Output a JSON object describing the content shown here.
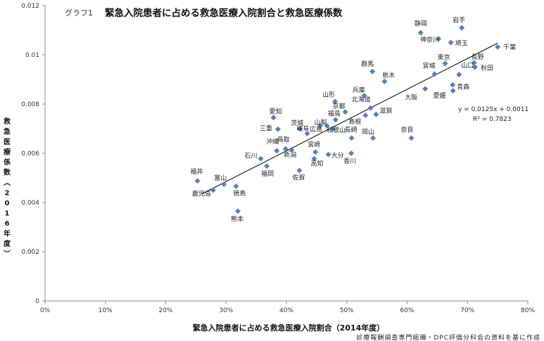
{
  "chart_data": {
    "type": "scatter",
    "title_prefix": "グラフ1",
    "title": "緊急入院患者に占める救急医療入院割合と救急医療係数",
    "xlabel": "緊急入院患者に占める救急医療入院割合（2014年度）",
    "ylabel": "救急医療係数（2016年度）",
    "source": "診療報酬調査専門組織・DPC評価分科会の資料を基に作成",
    "xlim": [
      0,
      0.8
    ],
    "ylim": [
      0,
      0.012
    ],
    "x_ticks": [
      "0%",
      "10%",
      "20%",
      "30%",
      "40%",
      "50%",
      "60%",
      "70%",
      "80%"
    ],
    "y_ticks": [
      "0",
      "0.002",
      "0.004",
      "0.006",
      "0.008",
      "0.01",
      "0.012"
    ],
    "grid": false,
    "legend": "none",
    "marker_color": "#4f81bd",
    "trendline": {
      "slope": 0.0125,
      "intercept": 0.0011,
      "x_range": [
        0.26,
        0.75
      ],
      "equation": "y = 0.0125x + 0.0011",
      "r2": "R² = 0.7823"
    },
    "points": [
      {
        "label": "岩手",
        "x": 0.6905,
        "y": 0.0111
      },
      {
        "label": "静岡",
        "x": 0.6225,
        "y": 0.0109
      },
      {
        "label": "神奈川",
        "x": 0.652,
        "y": 0.01065
      },
      {
        "label": "埼玉",
        "x": 0.6725,
        "y": 0.0105
      },
      {
        "label": "千葉",
        "x": 0.75,
        "y": 0.01032
      },
      {
        "label": "長野",
        "x": 0.711,
        "y": 0.00968
      },
      {
        "label": "東京",
        "x": 0.663,
        "y": 0.00965
      },
      {
        "label": "秋田",
        "x": 0.7125,
        "y": 0.0095
      },
      {
        "label": "宮城",
        "x": 0.6455,
        "y": 0.00922
      },
      {
        "label": "山口",
        "x": 0.686,
        "y": 0.0092
      },
      {
        "label": "群馬",
        "x": 0.5425,
        "y": 0.00932
      },
      {
        "label": "栃木",
        "x": 0.5625,
        "y": 0.00892
      },
      {
        "label": "青森",
        "x": 0.6755,
        "y": 0.00878
      },
      {
        "label": "愛媛",
        "x": 0.676,
        "y": 0.00854
      },
      {
        "label": "大阪",
        "x": 0.63,
        "y": 0.00862
      },
      {
        "label": "兵庫",
        "x": 0.529,
        "y": 0.00834
      },
      {
        "label": "山形",
        "x": 0.4805,
        "y": 0.0081
      },
      {
        "label": "北海道",
        "x": 0.5395,
        "y": 0.00784
      },
      {
        "label": "京都",
        "x": 0.4975,
        "y": 0.00768
      },
      {
        "label": "滋賀",
        "x": 0.5485,
        "y": 0.00758
      },
      {
        "label": "島根",
        "x": 0.531,
        "y": 0.00754
      },
      {
        "label": "福島",
        "x": 0.4815,
        "y": 0.00736
      },
      {
        "label": "愛知",
        "x": 0.3785,
        "y": 0.00745
      },
      {
        "label": "山梨",
        "x": 0.467,
        "y": 0.00712
      },
      {
        "label": "茨城",
        "x": 0.4225,
        "y": 0.007
      },
      {
        "label": "三重",
        "x": 0.386,
        "y": 0.00698
      },
      {
        "label": "岐阜",
        "x": 0.4345,
        "y": 0.0068
      },
      {
        "label": "広島",
        "x": 0.456,
        "y": 0.00712
      },
      {
        "label": "和歌山",
        "x": 0.476,
        "y": 0.007
      },
      {
        "label": "長崎",
        "x": 0.508,
        "y": 0.00662
      },
      {
        "label": "岡山",
        "x": 0.5435,
        "y": 0.00662
      },
      {
        "label": "奈良",
        "x": 0.607,
        "y": 0.00662
      },
      {
        "label": "鳥取",
        "x": 0.3985,
        "y": 0.00618
      },
      {
        "label": "沖縄",
        "x": 0.384,
        "y": 0.0061
      },
      {
        "label": "宮崎",
        "x": 0.448,
        "y": 0.00605
      },
      {
        "label": "新潟",
        "x": 0.4085,
        "y": 0.00614
      },
      {
        "label": "大分",
        "x": 0.4695,
        "y": 0.00595
      },
      {
        "label": "香川",
        "x": 0.5075,
        "y": 0.006
      },
      {
        "label": "石川",
        "x": 0.3575,
        "y": 0.00578
      },
      {
        "label": "高知",
        "x": 0.446,
        "y": 0.00578
      },
      {
        "label": "福岡",
        "x": 0.3675,
        "y": 0.00548
      },
      {
        "label": "佐賀",
        "x": 0.4215,
        "y": 0.0053
      },
      {
        "label": "福井",
        "x": 0.2525,
        "y": 0.00488
      },
      {
        "label": "富山",
        "x": 0.2965,
        "y": 0.00474
      },
      {
        "label": "鹿児島",
        "x": 0.2785,
        "y": 0.0045
      },
      {
        "label": "徳島",
        "x": 0.3165,
        "y": 0.00466
      },
      {
        "label": "熊本",
        "x": 0.3195,
        "y": 0.00365
      }
    ]
  }
}
